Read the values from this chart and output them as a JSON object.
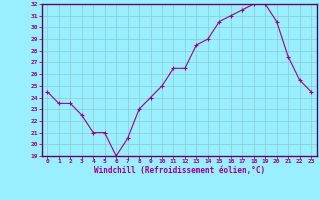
{
  "x": [
    0,
    1,
    2,
    3,
    4,
    5,
    6,
    7,
    8,
    9,
    10,
    11,
    12,
    13,
    14,
    15,
    16,
    17,
    18,
    19,
    20,
    21,
    22,
    23
  ],
  "y": [
    24.5,
    23.5,
    23.5,
    22.5,
    21.0,
    21.0,
    19.0,
    20.5,
    23.0,
    24.0,
    25.0,
    26.5,
    26.5,
    28.5,
    29.0,
    30.5,
    31.0,
    31.5,
    32.0,
    32.0,
    30.5,
    27.5,
    25.5,
    24.5
  ],
  "ylim": [
    19,
    32
  ],
  "yticks": [
    19,
    20,
    21,
    22,
    23,
    24,
    25,
    26,
    27,
    28,
    29,
    30,
    31,
    32
  ],
  "xticks": [
    0,
    1,
    2,
    3,
    4,
    5,
    6,
    7,
    8,
    9,
    10,
    11,
    12,
    13,
    14,
    15,
    16,
    17,
    18,
    19,
    20,
    21,
    22,
    23
  ],
  "xlabel": "Windchill (Refroidissement éolien,°C)",
  "line_color": "#990099",
  "marker": "+",
  "bg_color": "#99eeff",
  "grid_color": "#88cccc",
  "label_color": "#990099",
  "tick_color": "#990099",
  "border_color": "#660066"
}
